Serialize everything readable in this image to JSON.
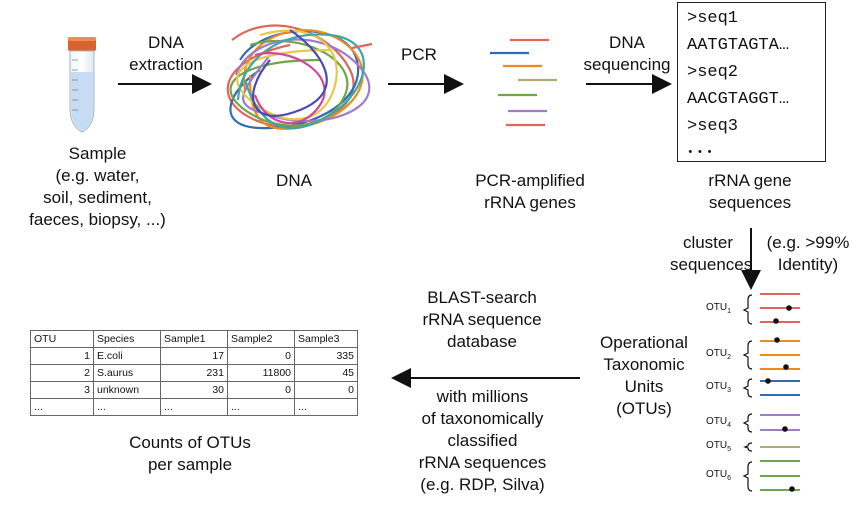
{
  "steps": {
    "sample_label": [
      "Sample",
      "(e.g. water,",
      "soil, sediment,",
      "faeces, biopsy, ...)"
    ],
    "dna_extraction_label": [
      "DNA",
      "extraction"
    ],
    "dna_label": "DNA",
    "pcr_label": "PCR",
    "pcr_products_label": [
      "PCR-amplified",
      "rRNA genes"
    ],
    "dna_sequencing_label": [
      "DNA",
      "sequencing"
    ],
    "sequences_label": [
      "rRNA gene",
      "sequences"
    ],
    "cluster_label": [
      "cluster",
      "sequences"
    ],
    "identity_label": [
      "(e.g. >99%",
      "Identity)"
    ],
    "otu_label": [
      "Operational",
      "Taxonomic",
      "Units",
      "(OTUs)"
    ],
    "blast_label": [
      "BLAST-search",
      "rRNA sequence",
      "database"
    ],
    "database_label": [
      "with millions",
      "of taxonomically",
      "classified",
      "rRNA sequences",
      "(e.g. RDP, Silva)"
    ],
    "counts_label": [
      "Counts of OTUs",
      "per sample"
    ]
  },
  "sequence_box": {
    "lines": [
      ">seq1",
      "AATGTAGTA…",
      ">seq2",
      "AACGTAGGT…",
      ">seq3",
      "•••"
    ]
  },
  "otus": {
    "names": [
      "OTU",
      "OTU",
      "OTU",
      "OTU",
      "OTU",
      "OTU"
    ],
    "subscripts": [
      "1",
      "2",
      "3",
      "4",
      "5",
      "6"
    ]
  },
  "table": {
    "headers": [
      "OTU",
      "Species",
      "Sample1",
      "Sample2",
      "Sample3"
    ],
    "rows": [
      [
        "1",
        "E.coli",
        "17",
        "0",
        "335"
      ],
      [
        "2",
        "S.aurus",
        "231",
        "11800",
        "45"
      ],
      [
        "3",
        "unknown",
        "30",
        "0",
        "0"
      ],
      [
        "...",
        "...",
        "...",
        "...",
        "..."
      ]
    ]
  },
  "colors": {
    "red": "#e0655a",
    "blue": "#2f6db4",
    "orange": "#f08a1c",
    "green": "#6fa64a",
    "purple": "#a07cc4",
    "olive": "#b1ab7a",
    "tube_cap": "#d8632e",
    "tube_liquid": "#c6dcf2"
  }
}
